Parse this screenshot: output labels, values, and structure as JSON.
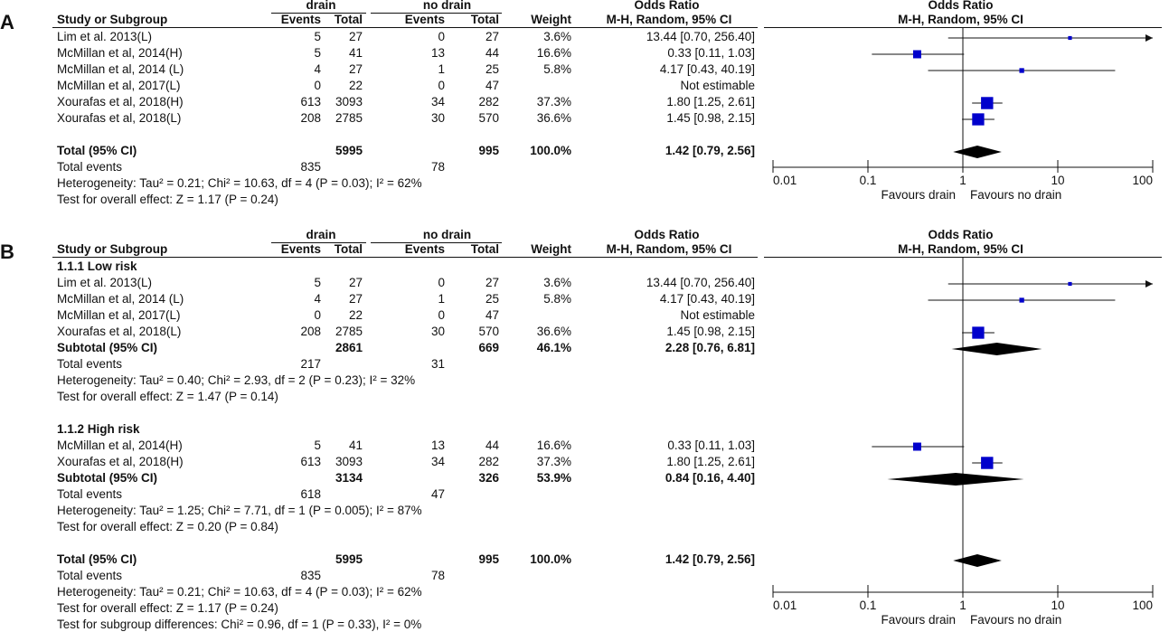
{
  "panels": [
    {
      "label": "A",
      "group1": "drain",
      "group2": "no drain",
      "col_events": "Events",
      "col_total": "Total",
      "col_weight": "Weight",
      "col_study": "Study or Subgroup",
      "or_header": "Odds Ratio",
      "or_method": "M-H, Random, 95% CI",
      "plot_header": "Odds Ratio",
      "plot_method": "M-H, Random, 95% CI",
      "rows": [
        {
          "kind": "study",
          "name": "Lim et al. 2013(L)",
          "e1": "5",
          "t1": "27",
          "e2": "0",
          "t2": "27",
          "w": "3.6%",
          "ci": "13.44 [0.70, 256.40]"
        },
        {
          "kind": "study",
          "name": "McMillan et al, 2014(H)",
          "e1": "5",
          "t1": "41",
          "e2": "13",
          "t2": "44",
          "w": "16.6%",
          "ci": "0.33 [0.11, 1.03]"
        },
        {
          "kind": "study",
          "name": "McMillan et al, 2014 (L)",
          "e1": "4",
          "t1": "27",
          "e2": "1",
          "t2": "25",
          "w": "5.8%",
          "ci": "4.17 [0.43, 40.19]"
        },
        {
          "kind": "study",
          "name": "McMillan et al, 2017(L)",
          "e1": "0",
          "t1": "22",
          "e2": "0",
          "t2": "47",
          "w": "",
          "ci": "Not estimable"
        },
        {
          "kind": "study",
          "name": "Xourafas et al, 2018(H)",
          "e1": "613",
          "t1": "3093",
          "e2": "34",
          "t2": "282",
          "w": "37.3%",
          "ci": "1.80 [1.25, 2.61]"
        },
        {
          "kind": "study",
          "name": "Xourafas et al, 2018(L)",
          "e1": "208",
          "t1": "2785",
          "e2": "30",
          "t2": "570",
          "w": "36.6%",
          "ci": "1.45 [0.98, 2.15]"
        },
        {
          "kind": "blank"
        },
        {
          "kind": "total",
          "name": "Total (95% CI)",
          "e1": "",
          "t1": "5995",
          "e2": "",
          "t2": "995",
          "w": "100.0%",
          "ci": "1.42 [0.79, 2.56]"
        },
        {
          "kind": "text",
          "name": "Total events",
          "e1": "835",
          "t1": "",
          "e2": "78",
          "t2": "",
          "w": "",
          "ci": ""
        },
        {
          "kind": "text",
          "name": "Heterogeneity: Tau² = 0.21; Chi² = 10.63, df = 4 (P = 0.03); I² = 62%"
        },
        {
          "kind": "text",
          "name": "Test for overall effect: Z = 1.17 (P = 0.24)"
        }
      ],
      "axis": {
        "ticks": [
          "0.01",
          "0.1",
          "1",
          "10",
          "100"
        ],
        "left_label": "Favours drain",
        "right_label": "Favours no drain"
      }
    },
    {
      "label": "B",
      "group1": "drain",
      "group2": "no drain",
      "col_events": "Events",
      "col_total": "Total",
      "col_weight": "Weight",
      "col_study": "Study or Subgroup",
      "or_header": "Odds Ratio",
      "or_method": "M-H, Random, 95% CI",
      "plot_header": "Odds Ratio",
      "plot_method": "M-H, Random, 95% CI",
      "rows": [
        {
          "kind": "heading",
          "name": "1.1.1 Low risk"
        },
        {
          "kind": "study",
          "name": "Lim et al. 2013(L)",
          "e1": "5",
          "t1": "27",
          "e2": "0",
          "t2": "27",
          "w": "3.6%",
          "ci": "13.44 [0.70, 256.40]"
        },
        {
          "kind": "study",
          "name": "McMillan et al, 2014 (L)",
          "e1": "4",
          "t1": "27",
          "e2": "1",
          "t2": "25",
          "w": "5.8%",
          "ci": "4.17 [0.43, 40.19]"
        },
        {
          "kind": "study",
          "name": "McMillan et al, 2017(L)",
          "e1": "0",
          "t1": "22",
          "e2": "0",
          "t2": "47",
          "w": "",
          "ci": "Not estimable"
        },
        {
          "kind": "study",
          "name": "Xourafas et al, 2018(L)",
          "e1": "208",
          "t1": "2785",
          "e2": "30",
          "t2": "570",
          "w": "36.6%",
          "ci": "1.45 [0.98, 2.15]"
        },
        {
          "kind": "total",
          "name": "Subtotal (95% CI)",
          "e1": "",
          "t1": "2861",
          "e2": "",
          "t2": "669",
          "w": "46.1%",
          "ci": "2.28 [0.76, 6.81]"
        },
        {
          "kind": "text",
          "name": "Total events",
          "e1": "217",
          "t1": "",
          "e2": "31",
          "t2": "",
          "w": "",
          "ci": ""
        },
        {
          "kind": "text",
          "name": "Heterogeneity: Tau² = 0.40; Chi² = 2.93, df = 2 (P = 0.23); I² = 32%"
        },
        {
          "kind": "text",
          "name": "Test for overall effect: Z = 1.47 (P = 0.14)"
        },
        {
          "kind": "blank"
        },
        {
          "kind": "heading",
          "name": "1.1.2 High risk"
        },
        {
          "kind": "study",
          "name": "McMillan et al, 2014(H)",
          "e1": "5",
          "t1": "41",
          "e2": "13",
          "t2": "44",
          "w": "16.6%",
          "ci": "0.33 [0.11, 1.03]"
        },
        {
          "kind": "study",
          "name": "Xourafas et al, 2018(H)",
          "e1": "613",
          "t1": "3093",
          "e2": "34",
          "t2": "282",
          "w": "37.3%",
          "ci": "1.80 [1.25, 2.61]"
        },
        {
          "kind": "total",
          "name": "Subtotal (95% CI)",
          "e1": "",
          "t1": "3134",
          "e2": "",
          "t2": "326",
          "w": "53.9%",
          "ci": "0.84 [0.16, 4.40]"
        },
        {
          "kind": "text",
          "name": "Total events",
          "e1": "618",
          "t1": "",
          "e2": "47",
          "t2": "",
          "w": "",
          "ci": ""
        },
        {
          "kind": "text",
          "name": "Heterogeneity: Tau² = 1.25; Chi² = 7.71, df = 1 (P = 0.005); I² = 87%"
        },
        {
          "kind": "text",
          "name": "Test for overall effect: Z = 0.20 (P = 0.84)"
        },
        {
          "kind": "blank"
        },
        {
          "kind": "total",
          "name": "Total (95% CI)",
          "e1": "",
          "t1": "5995",
          "e2": "",
          "t2": "995",
          "w": "100.0%",
          "ci": "1.42 [0.79, 2.56]"
        },
        {
          "kind": "text",
          "name": "Total events",
          "e1": "835",
          "t1": "",
          "e2": "78",
          "t2": "",
          "w": "",
          "ci": ""
        },
        {
          "kind": "text",
          "name": "Heterogeneity: Tau² = 0.21; Chi² = 10.63, df = 4 (P = 0.03); I² = 62%"
        },
        {
          "kind": "text",
          "name": "Test for overall effect: Z = 1.17 (P = 0.24)"
        },
        {
          "kind": "text",
          "name": "Test for subgroup differences: Chi² = 0.96, df = 1 (P = 0.33), I² = 0%"
        }
      ],
      "axis": {
        "ticks": [
          "0.01",
          "0.1",
          "1",
          "10",
          "100"
        ],
        "left_label": "Favours drain",
        "right_label": "Favours no drain"
      }
    }
  ],
  "chart_data": [
    {
      "type": "forest",
      "panel": "A",
      "scale": "log",
      "xlim": [
        0.01,
        100
      ],
      "colors": {
        "study": "#0000cc",
        "pooled": "#000000"
      },
      "studies": [
        {
          "name": "Lim et al. 2013(L)",
          "or": 13.44,
          "lo": 0.7,
          "hi": 256.4,
          "weight": 3.6
        },
        {
          "name": "McMillan et al, 2014(H)",
          "or": 0.33,
          "lo": 0.11,
          "hi": 1.03,
          "weight": 16.6
        },
        {
          "name": "McMillan et al, 2014 (L)",
          "or": 4.17,
          "lo": 0.43,
          "hi": 40.19,
          "weight": 5.8
        },
        {
          "name": "McMillan et al, 2017(L)",
          "or": null,
          "lo": null,
          "hi": null,
          "weight": null
        },
        {
          "name": "Xourafas et al, 2018(H)",
          "or": 1.8,
          "lo": 1.25,
          "hi": 2.61,
          "weight": 37.3
        },
        {
          "name": "Xourafas et al, 2018(L)",
          "or": 1.45,
          "lo": 0.98,
          "hi": 2.15,
          "weight": 36.6
        }
      ],
      "pooled": [
        {
          "name": "Total (95% CI)",
          "or": 1.42,
          "lo": 0.79,
          "hi": 2.56
        }
      ]
    },
    {
      "type": "forest",
      "panel": "B",
      "scale": "log",
      "xlim": [
        0.01,
        100
      ],
      "colors": {
        "study": "#0000cc",
        "pooled": "#000000"
      },
      "studies": [
        {
          "name": "Lim et al. 2013(L)",
          "or": 13.44,
          "lo": 0.7,
          "hi": 256.4,
          "weight": 3.6
        },
        {
          "name": "McMillan et al, 2014 (L)",
          "or": 4.17,
          "lo": 0.43,
          "hi": 40.19,
          "weight": 5.8
        },
        {
          "name": "McMillan et al, 2017(L)",
          "or": null,
          "lo": null,
          "hi": null,
          "weight": null
        },
        {
          "name": "Xourafas et al, 2018(L)",
          "or": 1.45,
          "lo": 0.98,
          "hi": 2.15,
          "weight": 36.6
        },
        {
          "name": "McMillan et al, 2014(H)",
          "or": 0.33,
          "lo": 0.11,
          "hi": 1.03,
          "weight": 16.6
        },
        {
          "name": "Xourafas et al, 2018(H)",
          "or": 1.8,
          "lo": 1.25,
          "hi": 2.61,
          "weight": 37.3
        }
      ],
      "pooled": [
        {
          "name": "Subtotal (95% CI)",
          "or": 2.28,
          "lo": 0.76,
          "hi": 6.81
        },
        {
          "name": "Subtotal (95% CI)",
          "or": 0.84,
          "lo": 0.16,
          "hi": 4.4
        },
        {
          "name": "Total (95% CI)",
          "or": 1.42,
          "lo": 0.79,
          "hi": 2.56
        }
      ]
    }
  ]
}
